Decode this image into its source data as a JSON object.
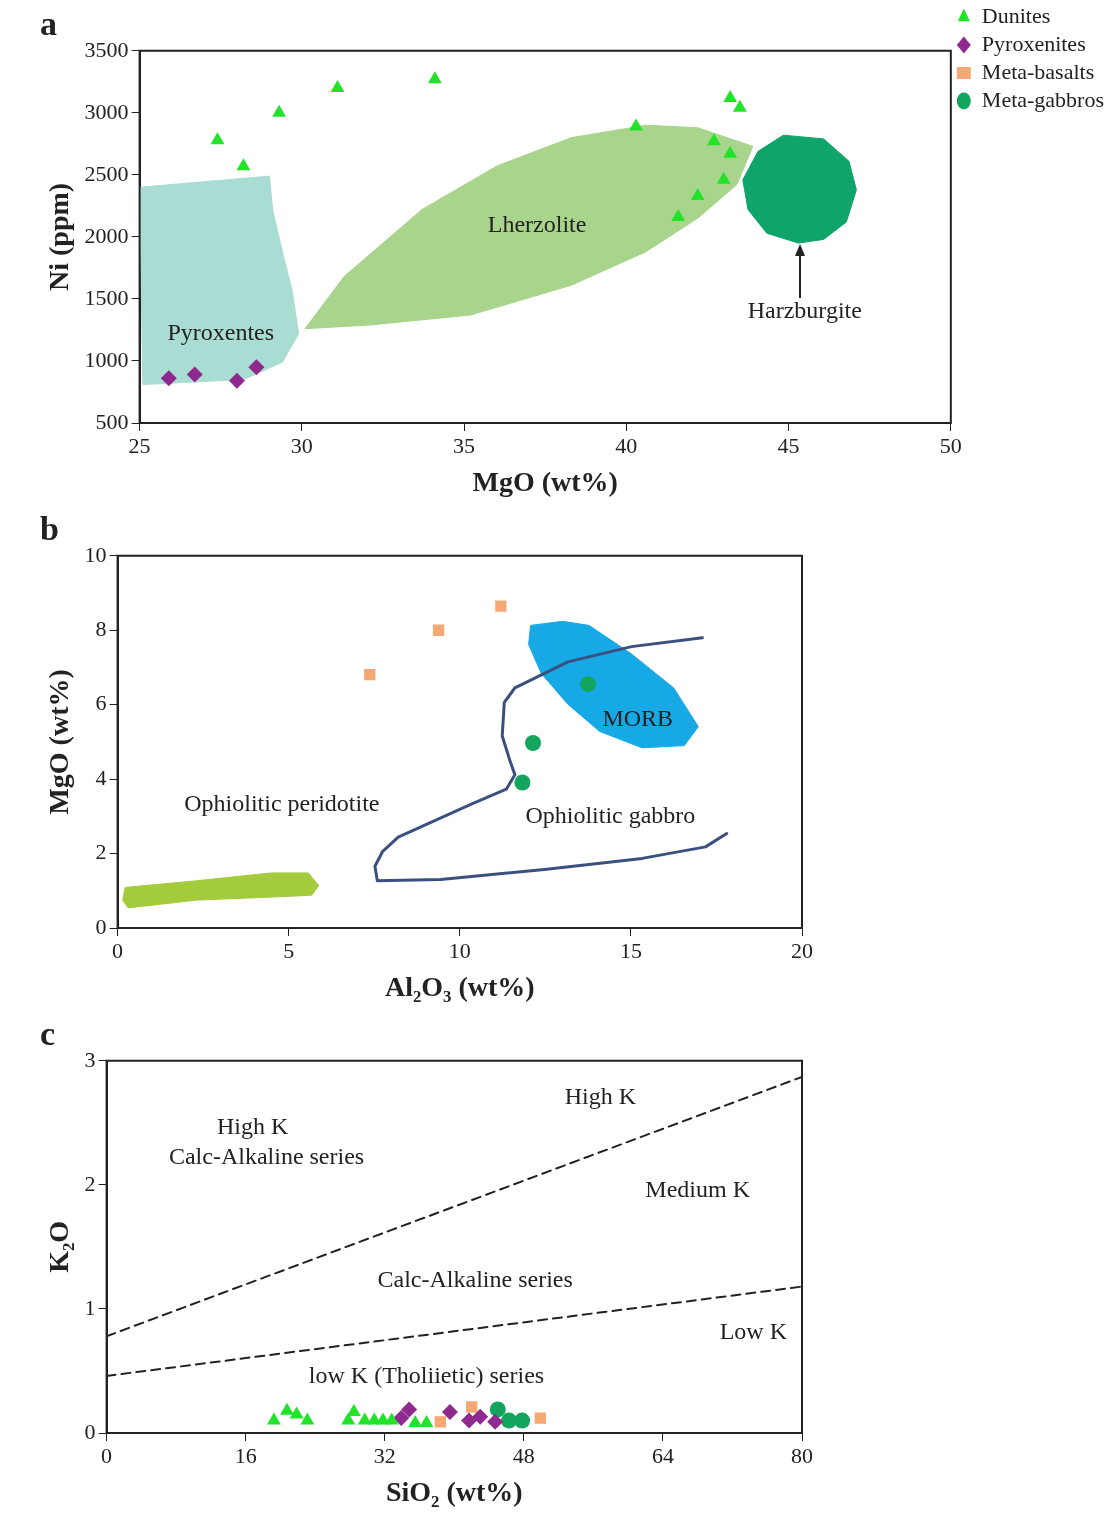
{
  "chart_data": [
    {
      "type": "scatter",
      "title": "a",
      "xlabel": "MgO (wt%)",
      "ylabel": "Ni (ppm)",
      "xlim": [
        25,
        50
      ],
      "xticks": [
        25,
        30,
        35,
        40,
        45,
        50
      ],
      "ylim": [
        500,
        3500
      ],
      "yticks": [
        500,
        1000,
        1500,
        2000,
        2500,
        3000,
        3500
      ],
      "legend": "top right",
      "series": [
        {
          "type": "area",
          "color": "#a9dcd2",
          "x": [
            25,
            29.0,
            29.1,
            29.4,
            29.7,
            29.9,
            29.4,
            28.2,
            25.1
          ],
          "values": [
            2400,
            2490,
            2220,
            1880,
            1570,
            1220,
            990,
            850,
            810
          ]
        },
        {
          "type": "area",
          "color": "#a9d48c",
          "x": [
            30.1,
            31.3,
            33.7,
            36.0,
            38.3,
            40.6,
            42.2,
            43.9,
            43.4,
            42.2,
            40.6,
            38.3,
            35.2,
            32.1
          ],
          "values": [
            1260,
            1680,
            2220,
            2570,
            2800,
            2900,
            2880,
            2730,
            2420,
            2150,
            1880,
            1610,
            1370,
            1290
          ]
        },
        {
          "type": "area",
          "color": "#0ea46a",
          "x": [
            44.84,
            46.08,
            46.86,
            47.09,
            46.78,
            46.08,
            45.3,
            44.33,
            43.75,
            43.59,
            44.06
          ],
          "values": [
            2820,
            2790,
            2610,
            2380,
            2120,
            1980,
            1950,
            2030,
            2220,
            2460,
            2690
          ]
        },
        {
          "type": "scatter",
          "name": "Dunites",
          "color": "#22e32a",
          "marker": "triangle",
          "x": [
            27.4,
            28.2,
            29.3,
            31.1,
            34.1,
            40.3,
            43.2,
            43.5,
            42.7,
            43.2,
            43.0,
            42.2,
            41.6
          ],
          "values": [
            2780,
            2570,
            3000,
            3200,
            3270,
            2890,
            3120,
            3040,
            2770,
            2670,
            2460,
            2330,
            2160
          ]
        },
        {
          "type": "scatter",
          "name": "Pyroxenites",
          "color": "#8e2a8e",
          "marker": "diamond",
          "x": [
            25.9,
            26.7,
            28.0,
            28.6
          ],
          "values": [
            860,
            890,
            840,
            950
          ]
        },
        {
          "type": "scatter",
          "name": "Meta-basalts",
          "color": "#f5a873",
          "marker": "square"
        },
        {
          "type": "scatter",
          "name": "Meta-gabbros",
          "color": "#13a45e",
          "marker": "circle"
        }
      ],
      "annotations": [
        "Pyroxentes",
        "Lherzolite",
        "Harzburgite"
      ]
    },
    {
      "type": "scatter",
      "title": "b",
      "xlabel": "Al₂O₃ (wt%)",
      "ylabel": "MgO (wt%)",
      "xlim": [
        0,
        20
      ],
      "xticks": [
        0,
        5,
        10,
        15,
        20
      ],
      "ylim": [
        0,
        10
      ],
      "yticks": [
        0,
        2,
        4,
        6,
        8,
        10
      ],
      "series": [
        {
          "type": "area",
          "color": "#17a9e6",
          "x": [
            12.07,
            13.0,
            13.78,
            15.02,
            16.25,
            16.97,
            16.56,
            15.33,
            14.09,
            13.16,
            12.38,
            12.01
          ],
          "values": [
            8.13,
            8.24,
            8.13,
            7.36,
            6.45,
            5.41,
            4.9,
            4.84,
            5.28,
            6.01,
            6.84,
            7.62
          ]
        },
        {
          "type": "area",
          "color": "#a3cb3b",
          "x": [
            0.22,
            2.32,
            4.49,
            5.57,
            5.88,
            5.67,
            4.49,
            2.32,
            0.31,
            0.15
          ],
          "values": [
            1.09,
            1.27,
            1.48,
            1.48,
            1.14,
            0.88,
            0.83,
            0.75,
            0.54,
            0.75
          ]
        },
        {
          "type": "line",
          "color": "#3c5080",
          "line_style": "solid",
          "x": [
            17.09,
            15.02,
            13.16,
            11.61,
            11.3,
            11.24,
            11.46,
            11.61,
            11.36,
            10.37,
            8.2,
            7.74,
            7.52,
            7.59,
            9.44,
            12.54,
            15.33,
            17.18,
            17.8
          ],
          "values": [
            7.8,
            7.56,
            7.15,
            6.45,
            6.06,
            5.16,
            4.51,
            4.12,
            3.73,
            3.34,
            2.44,
            2.05,
            1.66,
            1.27,
            1.3,
            1.58,
            1.87,
            2.18,
            2.54
          ]
        },
        {
          "type": "scatter",
          "color": "#f5a873",
          "marker": "square",
          "x": [
            7.37,
            9.38,
            11.2
          ],
          "values": [
            6.81,
            8.0,
            8.65
          ]
        },
        {
          "type": "scatter",
          "color": "#13a45e",
          "marker": "circle",
          "x": [
            13.75,
            12.14,
            11.83
          ],
          "values": [
            6.55,
            4.97,
            3.91
          ]
        }
      ],
      "annotations": [
        "MORB",
        "Ophiolitic peridotite",
        "Ophiolitic gabbro"
      ]
    },
    {
      "type": "scatter",
      "title": "c",
      "xlabel": "SiO₂ (wt%)",
      "ylabel": "K₂O",
      "xlim": [
        0,
        80
      ],
      "xticks": [
        0,
        16,
        32,
        48,
        64,
        80
      ],
      "ylim": [
        0,
        3
      ],
      "yticks": [
        0,
        1,
        2,
        3
      ],
      "series": [
        {
          "type": "line",
          "color": "#222222",
          "line_style": "dashed",
          "x": [
            0,
            80
          ],
          "values": [
            0.78,
            2.87
          ]
        },
        {
          "type": "line",
          "color": "#222222",
          "line_style": "dashed",
          "x": [
            0,
            80
          ],
          "values": [
            0.46,
            1.18
          ]
        },
        {
          "type": "scatter",
          "color": "#22e32a",
          "marker": "triangle",
          "x": [
            19.25,
            20.75,
            21.86,
            23.1,
            27.8,
            28.45,
            29.7,
            30.8,
            31.8,
            32.8,
            35.5,
            36.8
          ],
          "values": [
            0.1,
            0.18,
            0.15,
            0.1,
            0.1,
            0.17,
            0.1,
            0.1,
            0.1,
            0.1,
            0.08,
            0.08
          ]
        },
        {
          "type": "scatter",
          "color": "#8e2a8e",
          "marker": "diamond",
          "x": [
            33.9,
            34.8,
            39.5,
            41.7,
            42.98,
            44.7
          ],
          "values": [
            0.12,
            0.19,
            0.17,
            0.1,
            0.13,
            0.09
          ]
        },
        {
          "type": "scatter",
          "color": "#f5a873",
          "marker": "square",
          "x": [
            38.4,
            42.0,
            49.9
          ],
          "values": [
            0.09,
            0.21,
            0.12
          ]
        },
        {
          "type": "scatter",
          "color": "#13a45e",
          "marker": "circle",
          "x": [
            45.0,
            46.3,
            47.8
          ],
          "values": [
            0.19,
            0.1,
            0.1
          ]
        }
      ],
      "annotations": [
        "High K",
        "High K",
        "Calc-Alkaline series",
        "Medium K",
        "Calc-Alkaline series",
        "Low K",
        "low K (Tholiietic) series"
      ]
    }
  ]
}
